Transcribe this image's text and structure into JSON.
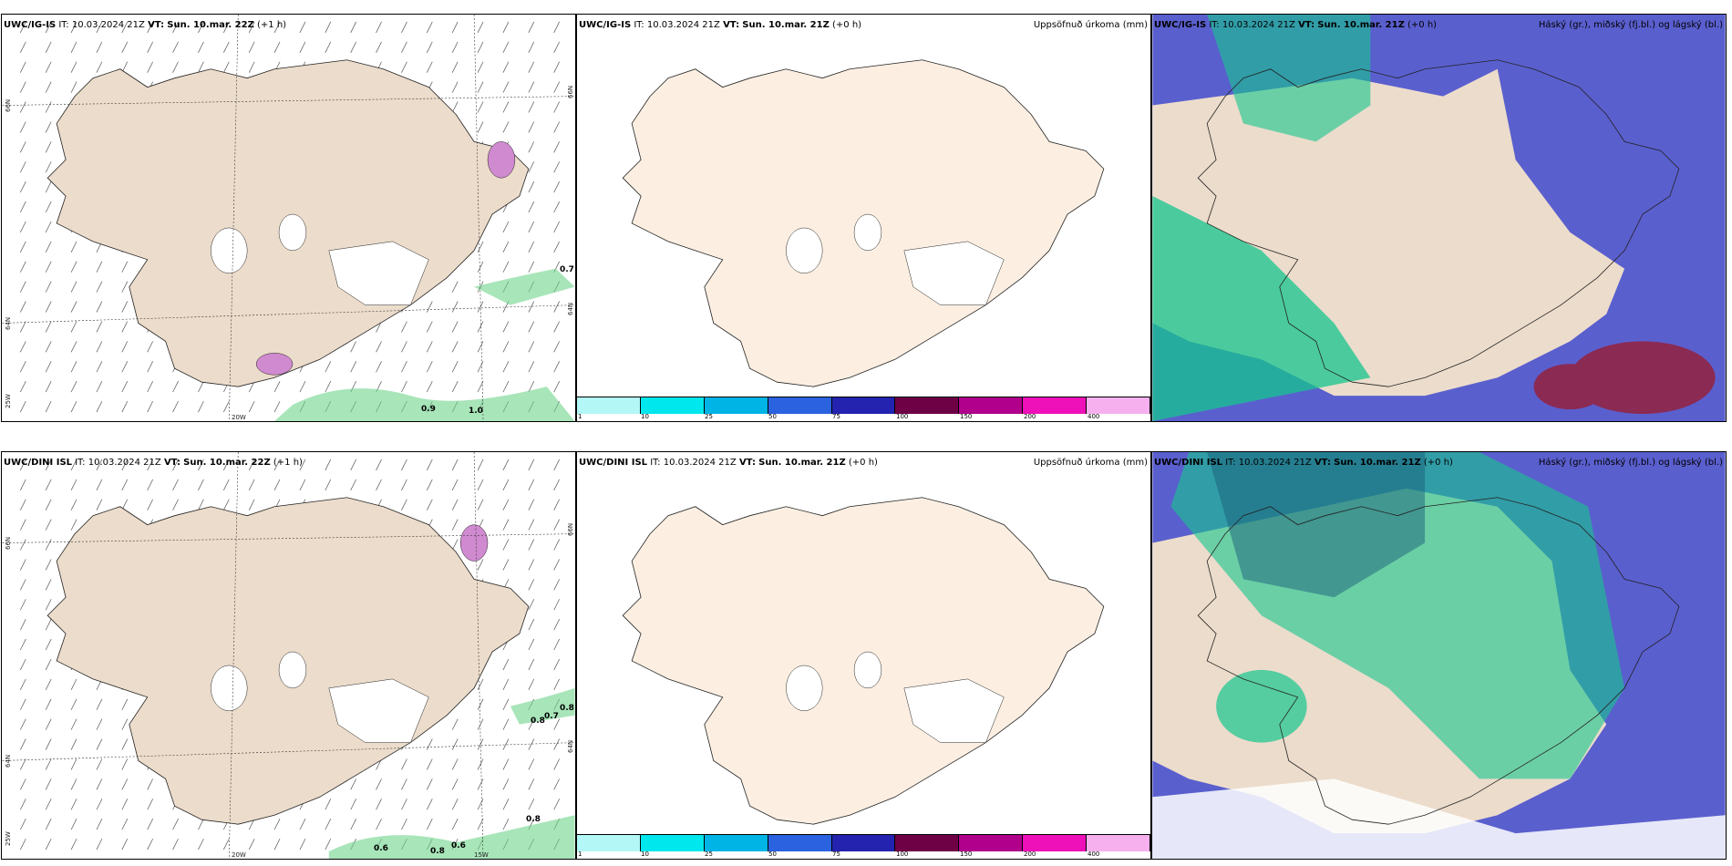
{
  "rows": [
    {
      "model": "UWC/IG-IS",
      "panels": [
        {
          "it": "10.03.2024 21Z",
          "vt": "Sun. 10.mar. 22Z",
          "offset": "(+1 h)",
          "right": ""
        },
        {
          "it": "10.03.2024 21Z",
          "vt": "Sun. 10.mar. 21Z",
          "offset": "(+0 h)",
          "right": "Uppsöfnuð úrkoma (mm)"
        },
        {
          "it": "10.03.2024 21Z",
          "vt": "Sun. 10.mar. 21Z",
          "offset": "(+0 h)",
          "right": "Háský (gr.), miðský (fj.bl.) og lágský (bl.)"
        }
      ],
      "values": [
        "0.7",
        "0.9",
        "1.0"
      ]
    },
    {
      "model": "UWC/DINI ISL",
      "panels": [
        {
          "it": "10.03.2024 21Z",
          "vt": "Sun. 10.mar. 22Z",
          "offset": "(+1 h)",
          "right": ""
        },
        {
          "it": "10.03.2024 21Z",
          "vt": "Sun. 10.mar. 21Z",
          "offset": "(+0 h)",
          "right": "Uppsöfnuð úrkoma (mm)"
        },
        {
          "it": "10.03.2024 21Z",
          "vt": "Sun. 10.mar. 21Z",
          "offset": "(+0 h)",
          "right": "Háský (gr.), miðský (fj.bl.) og lágský (bl.)"
        }
      ],
      "values": [
        "0.8",
        "0.7",
        "0.8",
        "0.6",
        "0.8",
        "0.6",
        "0.8"
      ]
    }
  ],
  "labels": {
    "it_prefix": "IT:",
    "vt_prefix": "VT:"
  },
  "graticule": {
    "lat_66": "66N",
    "lat_64": "64N",
    "lon_25": "25W",
    "lon_20": "20W",
    "lon_15": "15W"
  },
  "colorbar": {
    "ticks": [
      "1",
      "10",
      "25",
      "50",
      "75",
      "100",
      "150",
      "200",
      "400"
    ],
    "colors": [
      "#b3f7f7",
      "#00e8ee",
      "#00b4e6",
      "#2a62e0",
      "#2323b0",
      "#6e0046",
      "#b0008c",
      "#ee10b8",
      "#f6b0ee"
    ]
  },
  "colors": {
    "land": "#ecdccb",
    "land_precip": "#fcefe2",
    "cloud_high": "#5a5fce",
    "cloud_mid": "#16c68e",
    "cloud_low": "#8b2a52"
  }
}
